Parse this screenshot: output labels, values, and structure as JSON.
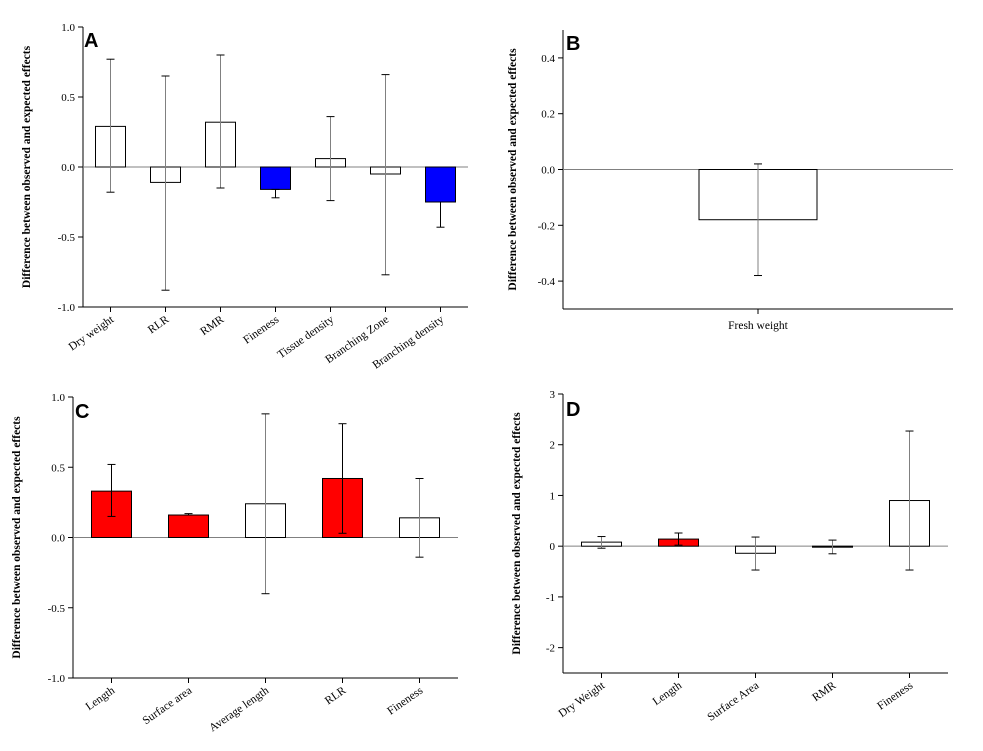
{
  "colors": {
    "significant_negative": "#0000ff",
    "significant_positive": "#ff0000",
    "nonsignificant": "#ffffff"
  },
  "chart_data": [
    {
      "panel": "A",
      "type": "bar",
      "ylabel": "Difference between observed and expected effects",
      "ylim": [
        -1.0,
        1.0
      ],
      "yticks": [
        "-1.0",
        "-0.5",
        "0.0",
        "0.5",
        "1.0"
      ],
      "categories": [
        "Dry weight",
        "RLR",
        "RMR",
        "Fineness",
        "Tissue density",
        "Branching Zone",
        "Branching density"
      ],
      "values": [
        0.29,
        -0.11,
        0.32,
        -0.16,
        0.06,
        -0.05,
        -0.25
      ],
      "err_low": [
        -0.18,
        -0.88,
        -0.15,
        -0.22,
        -0.24,
        -0.77,
        -0.43
      ],
      "err_high": [
        0.77,
        0.65,
        0.8,
        -0.16,
        0.36,
        0.66,
        -0.25
      ],
      "bar_colors": [
        "#ffffff",
        "#ffffff",
        "#ffffff",
        "#0000ff",
        "#ffffff",
        "#ffffff",
        "#0000ff"
      ]
    },
    {
      "panel": "B",
      "type": "bar",
      "ylabel": "Difference between observed and expected effects",
      "ylim": [
        -0.5,
        0.5
      ],
      "yticks": [
        "-0.4",
        "-0.2",
        "0.0",
        "0.2",
        "0.4"
      ],
      "categories": [
        "Fresh weight"
      ],
      "values": [
        -0.18
      ],
      "err_low": [
        -0.38
      ],
      "err_high": [
        0.02
      ],
      "bar_colors": [
        "#ffffff"
      ]
    },
    {
      "panel": "C",
      "type": "bar",
      "ylabel": "Difference between observed and expected effects",
      "ylim": [
        -1.0,
        1.0
      ],
      "yticks": [
        "-1.0",
        "-0.5",
        "0.0",
        "0.5",
        "1.0"
      ],
      "categories": [
        "Length",
        "Surface area",
        "Average length",
        "RLR",
        "Fineness"
      ],
      "values": [
        0.33,
        0.16,
        0.24,
        0.42,
        0.14
      ],
      "err_low": [
        0.15,
        0.16,
        -0.4,
        0.03,
        -0.14
      ],
      "err_high": [
        0.52,
        0.17,
        0.88,
        0.81,
        0.42
      ],
      "bar_colors": [
        "#ff0000",
        "#ff0000",
        "#ffffff",
        "#ff0000",
        "#ffffff"
      ]
    },
    {
      "panel": "D",
      "type": "bar",
      "ylabel": "Difference between observed and expected effects",
      "ylim": [
        -2.5,
        3.0
      ],
      "yticks": [
        "-2",
        "-1",
        "0",
        "1",
        "2",
        "3"
      ],
      "categories": [
        "Dry Weight",
        "Length",
        "Surface Area",
        "RMR",
        "Fineness"
      ],
      "values": [
        0.08,
        0.14,
        -0.14,
        -0.02,
        0.9
      ],
      "err_low": [
        -0.04,
        0.02,
        -0.47,
        -0.15,
        -0.47
      ],
      "err_high": [
        0.19,
        0.26,
        0.18,
        0.12,
        2.27
      ],
      "bar_colors": [
        "#ffffff",
        "#ff0000",
        "#ffffff",
        "#ffffff",
        "#ffffff"
      ]
    }
  ]
}
